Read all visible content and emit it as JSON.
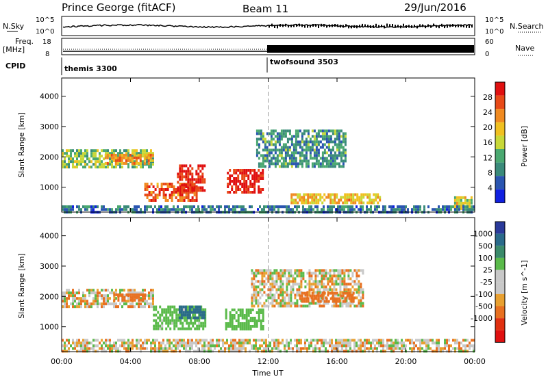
{
  "header": {
    "station": "Prince George (fitACF)",
    "beam": "Beam 11",
    "date": "29/Jun/2016"
  },
  "sky_panel": {
    "left_label": "N.Sky",
    "left_ticks": [
      "10^5",
      "10^0"
    ],
    "right_ticks": [
      "10^5",
      "10^0"
    ],
    "right_label": "N.Search"
  },
  "freq_panel": {
    "label_top": "Freq.",
    "label_unit": "[MHz]",
    "left_ticks": [
      "18",
      "8"
    ],
    "right_ticks": [
      "60",
      "0"
    ],
    "right_label": "Nave"
  },
  "cpid": {
    "label": "CPID",
    "segments": [
      {
        "name": "themis 3300",
        "start_hour": 0
      },
      {
        "name": "twofsound 3503",
        "start_hour": 12
      }
    ]
  },
  "x_axis": {
    "label": "Time UT",
    "tick_labels": [
      "00:00",
      "04:00",
      "08:00",
      "12:00",
      "16:00",
      "20:00",
      "00:00"
    ],
    "tick_hours": [
      0,
      4,
      8,
      12,
      16,
      20,
      24
    ]
  },
  "colors": {
    "power_scale": [
      "#1020e0",
      "#2a55b0",
      "#3a8a7a",
      "#4aa870",
      "#c8d838",
      "#f0c020",
      "#f08a20",
      "#e84a18",
      "#e01010"
    ],
    "velocity_scale": [
      "#2a3a9a",
      "#2a6a8a",
      "#3a8a6a",
      "#5aba4a",
      "#c8c8c8",
      "#c8c8c8",
      "#e8a030",
      "#e87020",
      "#e03010",
      "#e01010"
    ]
  },
  "chart_data": [
    {
      "type": "heatmap",
      "title": "Power",
      "ylabel": "Slant Range [km]",
      "xlabel": "Time UT",
      "xlim": [
        0,
        24
      ],
      "ylim": [
        180,
        4600
      ],
      "yticks": [
        1000,
        2000,
        3000,
        4000
      ],
      "colorbar": {
        "label": "Power [dB]",
        "ticks": [
          4,
          8,
          12,
          16,
          20,
          24,
          28
        ],
        "range": [
          0,
          32
        ]
      },
      "regions": [
        {
          "start_h": 0.0,
          "end_h": 5.3,
          "range_min": 1650,
          "range_max": 2250,
          "level_db": 14
        },
        {
          "start_h": 2.5,
          "end_h": 5.3,
          "range_min": 1750,
          "range_max": 2100,
          "level_db": 22
        },
        {
          "start_h": 4.8,
          "end_h": 7.8,
          "range_min": 550,
          "range_max": 1150,
          "level_db": 26
        },
        {
          "start_h": 6.7,
          "end_h": 8.3,
          "range_min": 850,
          "range_max": 1750,
          "level_db": 30
        },
        {
          "start_h": 9.6,
          "end_h": 11.7,
          "range_min": 850,
          "range_max": 1600,
          "level_db": 30
        },
        {
          "start_h": 11.3,
          "end_h": 16.5,
          "range_min": 1700,
          "range_max": 2900,
          "level_db": 10
        },
        {
          "start_h": 13.3,
          "end_h": 18.5,
          "range_min": 450,
          "range_max": 800,
          "level_db": 20
        },
        {
          "start_h": 22.8,
          "end_h": 23.8,
          "range_min": 300,
          "range_max": 700,
          "level_db": 18
        },
        {
          "start_h": 0.0,
          "end_h": 24.0,
          "range_min": 180,
          "range_max": 400,
          "level_db": 8
        }
      ]
    },
    {
      "type": "heatmap",
      "title": "Velocity",
      "ylabel": "Slant Range [km]",
      "xlabel": "Time UT",
      "xlim": [
        0,
        24
      ],
      "ylim": [
        180,
        4600
      ],
      "yticks": [
        1000,
        2000,
        3000,
        4000
      ],
      "colorbar": {
        "label": "Velocity [m s^-1]",
        "ticks": [
          "1000",
          "500",
          "100",
          "25",
          "-25",
          "-100",
          "-500",
          "-1000"
        ]
      },
      "regions": [
        {
          "start_h": 0.0,
          "end_h": 5.3,
          "range_min": 1650,
          "range_max": 2250,
          "velocity_ms": 0
        },
        {
          "start_h": 3.0,
          "end_h": 4.8,
          "range_min": 1850,
          "range_max": 2100,
          "velocity_ms": -150
        },
        {
          "start_h": 5.3,
          "end_h": 8.3,
          "range_min": 900,
          "range_max": 1700,
          "velocity_ms": 150
        },
        {
          "start_h": 6.8,
          "end_h": 8.3,
          "range_min": 1300,
          "range_max": 1700,
          "velocity_ms": 600
        },
        {
          "start_h": 9.5,
          "end_h": 11.7,
          "range_min": 900,
          "range_max": 1600,
          "velocity_ms": 200
        },
        {
          "start_h": 11.0,
          "end_h": 17.5,
          "range_min": 1700,
          "range_max": 2900,
          "velocity_ms": 0
        },
        {
          "start_h": 13.8,
          "end_h": 17.0,
          "range_min": 1850,
          "range_max": 2150,
          "velocity_ms": -200
        },
        {
          "start_h": 0.0,
          "end_h": 24.0,
          "range_min": 180,
          "range_max": 600,
          "velocity_ms": 0
        }
      ]
    }
  ]
}
